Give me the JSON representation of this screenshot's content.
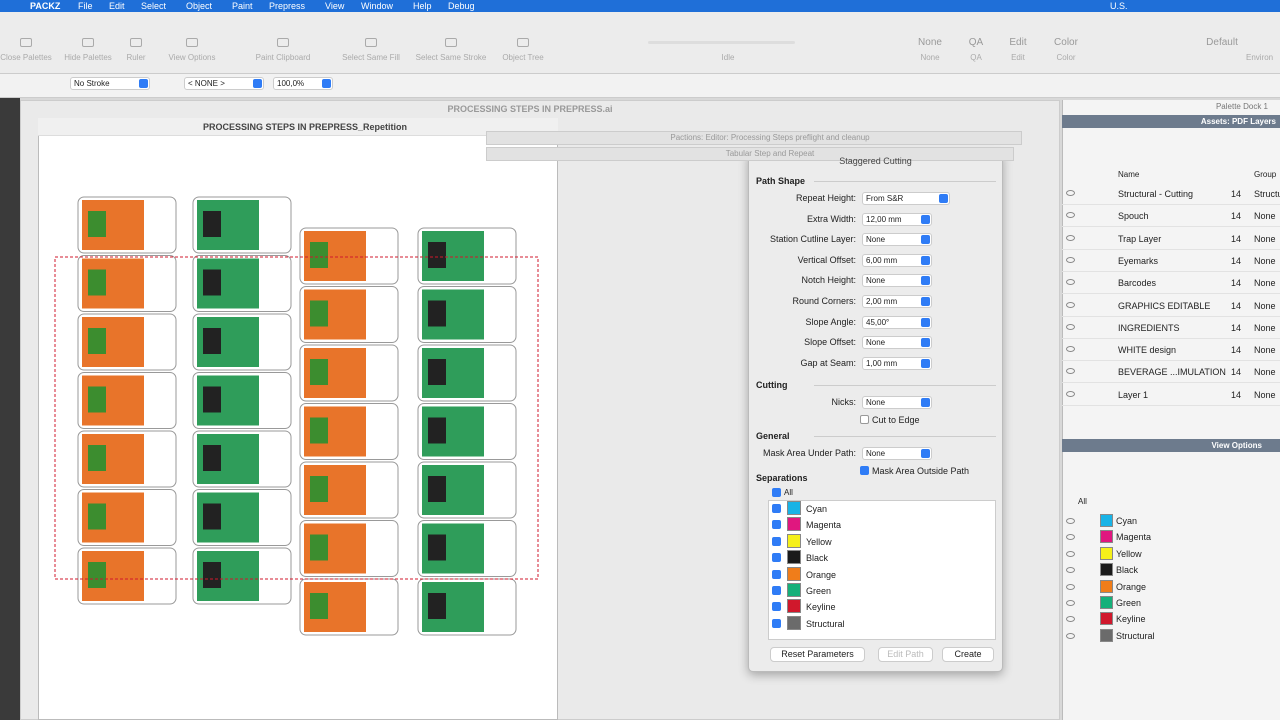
{
  "menubar": {
    "app": "PACKZ",
    "items": [
      "File",
      "Edit",
      "Select",
      "Object",
      "Paint",
      "Prepress",
      "View",
      "Window",
      "Help",
      "Debug"
    ],
    "input_source": "U.S."
  },
  "toolbar": {
    "tools": [
      "Close Palettes",
      "Hide Palettes",
      "Ruler",
      "View Options",
      "Paint Clipboard",
      "Select Same Fill",
      "Select Same Stroke",
      "Object Tree"
    ],
    "status": "Idle",
    "buttons": [
      {
        "label": "None",
        "caption": "None"
      },
      {
        "label": "QA",
        "caption": "QA"
      },
      {
        "label": "Edit",
        "caption": "Edit"
      },
      {
        "label": "Color",
        "caption": "Color"
      }
    ],
    "preset": "Default",
    "preset_caption": "Environ"
  },
  "properties": {
    "stroke": "No Stroke",
    "color": "< NONE >",
    "zoom": "100,0%"
  },
  "windows": {
    "main_title": "PROCESSING STEPS IN PREPRESS.ai",
    "doc_title": "PROCESSING STEPS IN PREPRESS_Repetition",
    "back_panels": [
      "Pactions: Editor: Processing Steps preflight and cleanup",
      "Tabular Step and Repeat"
    ]
  },
  "separations": [
    {
      "name": "Cyan",
      "color": "#19b3e6"
    },
    {
      "name": "Magenta",
      "color": "#e0177f"
    },
    {
      "name": "Yellow",
      "color": "#f5f01a"
    },
    {
      "name": "Black",
      "color": "#1a1a1a"
    },
    {
      "name": "Orange",
      "color": "#f07d1a"
    },
    {
      "name": "Green",
      "color": "#16b07a"
    },
    {
      "name": "Keyline",
      "color": "#d0182c"
    },
    {
      "name": "Structural",
      "color": "#6b6b6b"
    }
  ],
  "dialog": {
    "title": "Staggered Cutting",
    "sections": [
      {
        "heading": "Path Shape",
        "fields": [
          {
            "label": "Repeat Height:",
            "value": "From S&R"
          },
          {
            "label": "Extra Width:",
            "value": "12,00 mm"
          },
          {
            "label": "Station Cutline Layer:",
            "value": "None"
          },
          {
            "label": "Vertical Offset:",
            "value": "6,00 mm"
          },
          {
            "label": "Notch Height:",
            "value": "None"
          },
          {
            "label": "Round Corners:",
            "value": "2,00 mm"
          },
          {
            "label": "Slope Angle:",
            "value": "45,00°"
          },
          {
            "label": "Slope Offset:",
            "value": "None"
          },
          {
            "label": "Gap at Seam:",
            "value": "1,00 mm"
          }
        ]
      },
      {
        "heading": "Cutting",
        "fields": [
          {
            "label": "Nicks:",
            "value": "None"
          }
        ],
        "checks": [
          {
            "label": "Cut to Edge",
            "checked": false
          }
        ]
      },
      {
        "heading": "General",
        "fields": [
          {
            "label": "Mask Area Under Path:",
            "value": "None"
          }
        ],
        "checks": [
          {
            "label": "Mask Area Outside Path",
            "checked": true
          }
        ]
      }
    ],
    "separations_heading": "Separations",
    "all": "All",
    "buttons": [
      "Reset Parameters",
      "Edit Path",
      "Create"
    ]
  },
  "palette": {
    "title": "Palette Dock 1",
    "assets_title": "Assets: PDF Layers",
    "columns": [
      "Name",
      "Group"
    ],
    "layers": [
      {
        "name": "Structural - Cutting",
        "count": 14,
        "group": "Structu"
      },
      {
        "name": "Spouch",
        "count": 14,
        "group": "None"
      },
      {
        "name": "Trap Layer",
        "count": 14,
        "group": "None"
      },
      {
        "name": "Eyemarks",
        "count": 14,
        "group": "None"
      },
      {
        "name": "Barcodes",
        "count": 14,
        "group": "None"
      },
      {
        "name": "GRAPHICS EDITABLE",
        "count": 14,
        "group": "None"
      },
      {
        "name": "INGREDIENTS",
        "count": 14,
        "group": "None"
      },
      {
        "name": "WHITE design",
        "count": 14,
        "group": "None"
      },
      {
        "name": "BEVERAGE ...IMULATION",
        "count": 14,
        "group": "None"
      },
      {
        "name": "Layer 1",
        "count": 14,
        "group": "None"
      }
    ],
    "view_title": "View Options",
    "view_all": "All"
  }
}
